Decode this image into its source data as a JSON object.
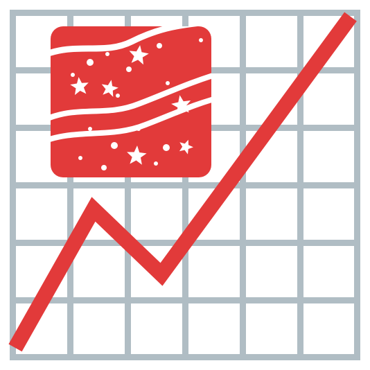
{
  "colors": {
    "background": "#ffffff",
    "grid": "#b0bdc4",
    "accent": "#e23a3a",
    "pattern": "#ffffff"
  },
  "icons": {
    "grid": "grid-background-icon",
    "trend": "trend-line-icon",
    "badge": "stars-and-stripes-badge-icon"
  }
}
